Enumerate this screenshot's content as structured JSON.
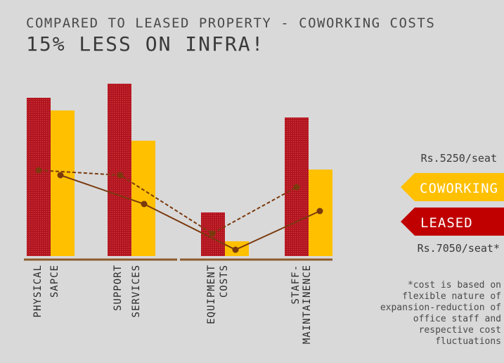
{
  "header": {
    "subtitle": "COMPARED TO LEASED PROPERTY - COWORKING COSTS",
    "title": "15% LESS ON INFRA!"
  },
  "legend": {
    "coworking_price": "Rs.5250/seat",
    "coworking_label": "COWORKING",
    "leased_label": "LEASED",
    "leased_price": "Rs.7050/seat*"
  },
  "footnote": "*cost is based on flexible nature of expansion-reduction of office staff and respective cost fluctuations",
  "colors": {
    "leased": "#b3151f",
    "coworking": "#ffc000",
    "line": "#7a3a0e",
    "baseline": "#8b5a2b",
    "background": "#d9d9d9"
  },
  "chart_data": {
    "type": "bar",
    "categories": [
      [
        "PHYSICAL",
        "SAPCE"
      ],
      [
        "SUPPORT",
        "SERVICES"
      ],
      [
        "EQUIPMENT",
        "COSTS"
      ],
      [
        "STAFF-",
        "MAINTAINENCE"
      ]
    ],
    "series": [
      {
        "name": "LEASED",
        "values": [
          225,
          245,
          62,
          197
        ]
      },
      {
        "name": "COWORKING",
        "values": [
          207,
          164,
          21,
          123
        ]
      }
    ],
    "lines": [
      {
        "name": "LEASED",
        "style": "dashed",
        "values": [
          122,
          115,
          32,
          98
        ]
      },
      {
        "name": "COWORKING",
        "style": "solid",
        "values": [
          115,
          74,
          9,
          64
        ]
      }
    ],
    "ylim": [
      0,
      260
    ],
    "legend_position": "right",
    "grid": false
  }
}
